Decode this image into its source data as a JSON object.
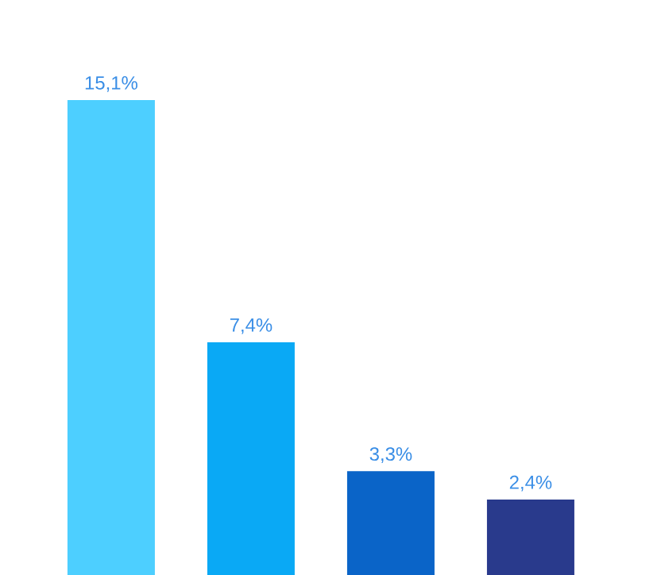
{
  "chart_data": {
    "type": "bar",
    "categories": [
      null,
      null,
      null,
      null
    ],
    "values": [
      15.1,
      7.4,
      3.3,
      2.4
    ],
    "colors": [
      "#4dcfff",
      "#0aa9f5",
      "#0a64c8",
      "#293a8c"
    ],
    "value_labels": [
      "15,1%",
      "7,4%",
      "3,3%",
      "2,4%"
    ]
  }
}
